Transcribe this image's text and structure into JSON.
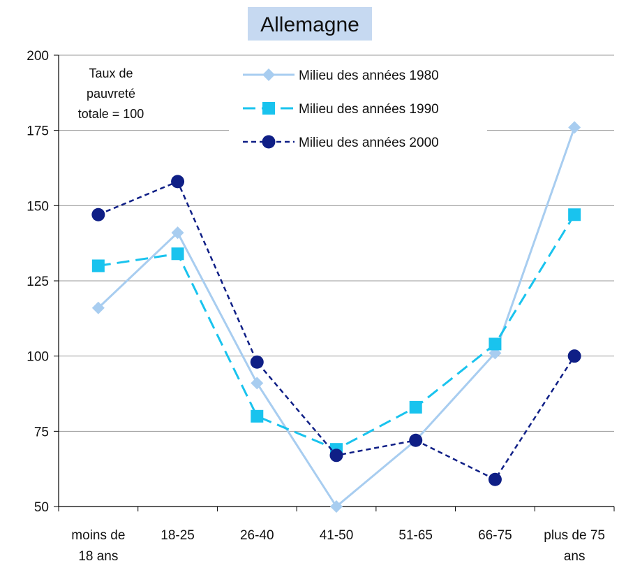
{
  "chart_data": {
    "type": "line",
    "title": "Allemagne",
    "categories": [
      [
        "moins de",
        "18 ans"
      ],
      [
        "18-25"
      ],
      [
        "26-40"
      ],
      [
        "41-50"
      ],
      [
        "51-65"
      ],
      [
        "66-75"
      ],
      [
        "plus de 75",
        "ans"
      ]
    ],
    "ylim": [
      50,
      200
    ],
    "yticks": [
      "50",
      "75",
      "100",
      "125",
      "150",
      "175",
      "200"
    ],
    "grid": true,
    "legend_position": "top-right",
    "annotation": [
      "Taux de",
      "pauvreté",
      "totale = 100"
    ],
    "series": [
      {
        "name": "Milieu des années 1980",
        "values": [
          116,
          141,
          91,
          50,
          72,
          101,
          176
        ],
        "color": "#a8cdf0",
        "marker": "diamond",
        "dash": "solid"
      },
      {
        "name": "Milieu des années 1990",
        "values": [
          130,
          134,
          80,
          69,
          83,
          104,
          147
        ],
        "color": "#19c3ee",
        "marker": "square",
        "dash": "longdash"
      },
      {
        "name": "Milieu des années 2000",
        "values": [
          147,
          158,
          98,
          67,
          72,
          59,
          100
        ],
        "color": "#0f1f86",
        "marker": "circle",
        "dash": "shortdash"
      }
    ]
  }
}
